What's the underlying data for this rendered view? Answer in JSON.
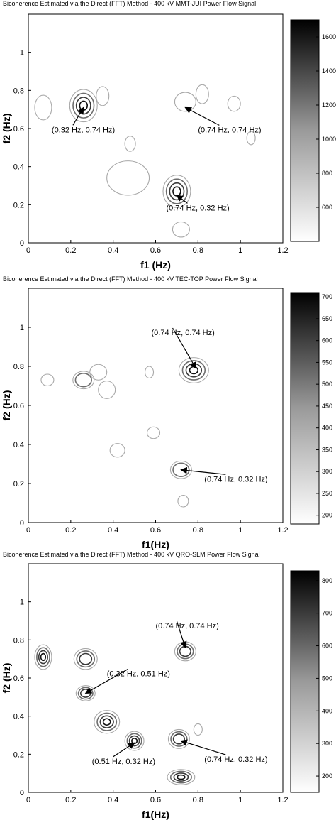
{
  "chart_data": [
    {
      "type": "contour",
      "title": "Bicoherence Estimated via the Direct (FFT) Method - 400 kV MMT-JUI Power Flow Signal",
      "xlabel": "f1 (Hz)",
      "ylabel": "f2 (Hz)",
      "xlim": [
        0,
        1.2
      ],
      "ylim": [
        0,
        1.2
      ],
      "xticks": [
        "0",
        "0.2",
        "0.4",
        "0.6",
        "0.8",
        "1",
        "1.2"
      ],
      "yticks": [
        "0",
        "0.2",
        "0.4",
        "0.6",
        "0.8",
        "1"
      ],
      "colorbar": {
        "range": [
          400,
          1700
        ],
        "ticks": [
          "600",
          "800",
          "1000",
          "1200",
          "1400",
          "1600"
        ]
      },
      "peaks": [
        {
          "x": 0.26,
          "y": 0.72,
          "rx": 0.065,
          "ry": 0.085,
          "levels": 4
        },
        {
          "x": 0.7,
          "y": 0.27,
          "rx": 0.065,
          "ry": 0.085,
          "levels": 4
        },
        {
          "x": 0.74,
          "y": 0.74,
          "rx": 0.05,
          "ry": 0.05,
          "levels": 1
        },
        {
          "x": 0.07,
          "y": 0.71,
          "rx": 0.04,
          "ry": 0.065,
          "levels": 1
        },
        {
          "x": 0.35,
          "y": 0.77,
          "rx": 0.03,
          "ry": 0.05,
          "levels": 1
        },
        {
          "x": 0.82,
          "y": 0.78,
          "rx": 0.03,
          "ry": 0.05,
          "levels": 1
        },
        {
          "x": 0.47,
          "y": 0.34,
          "rx": 0.1,
          "ry": 0.09,
          "levels": 1
        },
        {
          "x": 0.72,
          "y": 0.07,
          "rx": 0.04,
          "ry": 0.04,
          "levels": 1
        },
        {
          "x": 0.97,
          "y": 0.73,
          "rx": 0.03,
          "ry": 0.04,
          "levels": 1
        },
        {
          "x": 0.48,
          "y": 0.52,
          "rx": 0.025,
          "ry": 0.04,
          "levels": 1
        },
        {
          "x": 1.05,
          "y": 0.55,
          "rx": 0.02,
          "ry": 0.035,
          "levels": 1
        }
      ],
      "annotations": [
        {
          "text": "(0.32 Hz, 0.74 Hz)",
          "x": 0.26,
          "y": 0.71,
          "tx": 0.11,
          "ty": 0.58
        },
        {
          "text": "(0.74 Hz, 0.74 Hz)",
          "x": 0.74,
          "y": 0.71,
          "tx": 0.8,
          "ty": 0.58
        },
        {
          "text": "(0.74 Hz, 0.32 Hz)",
          "x": 0.7,
          "y": 0.25,
          "tx": 0.65,
          "ty": 0.17
        }
      ]
    },
    {
      "type": "contour",
      "title": "Bicoherence Estimated via the Direct (FFT) Method - 400 kV TEC-TOP Power Flow Signal",
      "xlabel": "f1(Hz)",
      "ylabel": "f2 (Hz)",
      "xlim": [
        0,
        1.2
      ],
      "ylim": [
        0,
        1.2
      ],
      "xticks": [
        "0",
        "0.2",
        "0.4",
        "0.6",
        "0.8",
        "1",
        "1.2"
      ],
      "yticks": [
        "0",
        "0.2",
        "0.4",
        "0.6",
        "0.8",
        "1"
      ],
      "colorbar": {
        "range": [
          180,
          710
        ],
        "ticks": [
          "200",
          "250",
          "300",
          "350",
          "400",
          "450",
          "500",
          "550",
          "600",
          "650",
          "700"
        ]
      },
      "peaks": [
        {
          "x": 0.78,
          "y": 0.78,
          "rx": 0.07,
          "ry": 0.065,
          "levels": 4
        },
        {
          "x": 0.26,
          "y": 0.73,
          "rx": 0.05,
          "ry": 0.045,
          "levels": 2
        },
        {
          "x": 0.72,
          "y": 0.27,
          "rx": 0.05,
          "ry": 0.045,
          "levels": 2
        },
        {
          "x": 0.33,
          "y": 0.77,
          "rx": 0.04,
          "ry": 0.04,
          "levels": 1
        },
        {
          "x": 0.09,
          "y": 0.73,
          "rx": 0.03,
          "ry": 0.03,
          "levels": 1
        },
        {
          "x": 0.42,
          "y": 0.37,
          "rx": 0.035,
          "ry": 0.035,
          "levels": 1
        },
        {
          "x": 0.37,
          "y": 0.68,
          "rx": 0.04,
          "ry": 0.045,
          "levels": 1
        },
        {
          "x": 0.73,
          "y": 0.11,
          "rx": 0.025,
          "ry": 0.03,
          "levels": 1
        },
        {
          "x": 0.59,
          "y": 0.46,
          "rx": 0.03,
          "ry": 0.03,
          "levels": 1
        },
        {
          "x": 0.57,
          "y": 0.77,
          "rx": 0.02,
          "ry": 0.03,
          "levels": 1
        }
      ],
      "annotations": [
        {
          "text": "(0.74 Hz, 0.74 Hz)",
          "x": 0.79,
          "y": 0.79,
          "tx": 0.58,
          "ty": 0.96
        },
        {
          "text": "(0.74 Hz, 0.32 Hz)",
          "x": 0.72,
          "y": 0.27,
          "tx": 0.83,
          "ty": 0.21
        }
      ]
    },
    {
      "type": "contour",
      "title": "Bicoherence Estimated via the Direct (FFT) Method - 400 kV QRO-SLM Power Flow Signal",
      "xlabel": "f1(Hz)",
      "ylabel": "f2 (Hz)",
      "xlim": [
        0,
        1.2
      ],
      "ylim": [
        0,
        1.2
      ],
      "xticks": [
        "0",
        "0.2",
        "0.4",
        "0.6",
        "0.8",
        "1",
        "1.2"
      ],
      "yticks": [
        "0",
        "0.2",
        "0.4",
        "0.6",
        "0.8",
        "1"
      ],
      "colorbar": {
        "range": [
          150,
          830
        ],
        "ticks": [
          "200",
          "300",
          "400",
          "500",
          "600",
          "700",
          "800"
        ]
      },
      "peaks": [
        {
          "x": 0.07,
          "y": 0.71,
          "rx": 0.04,
          "ry": 0.065,
          "levels": 4
        },
        {
          "x": 0.27,
          "y": 0.7,
          "rx": 0.055,
          "ry": 0.055,
          "levels": 3
        },
        {
          "x": 0.74,
          "y": 0.74,
          "rx": 0.05,
          "ry": 0.05,
          "levels": 3
        },
        {
          "x": 0.27,
          "y": 0.52,
          "rx": 0.045,
          "ry": 0.04,
          "levels": 3
        },
        {
          "x": 0.37,
          "y": 0.37,
          "rx": 0.06,
          "ry": 0.06,
          "levels": 4
        },
        {
          "x": 0.5,
          "y": 0.27,
          "rx": 0.045,
          "ry": 0.05,
          "levels": 4
        },
        {
          "x": 0.71,
          "y": 0.28,
          "rx": 0.05,
          "ry": 0.05,
          "levels": 3
        },
        {
          "x": 0.72,
          "y": 0.08,
          "rx": 0.065,
          "ry": 0.04,
          "levels": 4
        },
        {
          "x": 0.8,
          "y": 0.33,
          "rx": 0.02,
          "ry": 0.03,
          "levels": 1
        }
      ],
      "annotations": [
        {
          "text": "(0.74 Hz, 0.74 Hz)",
          "x": 0.74,
          "y": 0.76,
          "tx": 0.6,
          "ty": 0.86
        },
        {
          "text": "(0.32 Hz, 0.51 Hz)",
          "x": 0.27,
          "y": 0.52,
          "tx": 0.37,
          "ty": 0.61
        },
        {
          "text": "(0.51 Hz, 0.32 Hz)",
          "x": 0.5,
          "y": 0.26,
          "tx": 0.3,
          "ty": 0.15
        },
        {
          "text": "(0.74 Hz, 0.32 Hz)",
          "x": 0.72,
          "y": 0.27,
          "tx": 0.83,
          "ty": 0.16
        }
      ]
    }
  ]
}
